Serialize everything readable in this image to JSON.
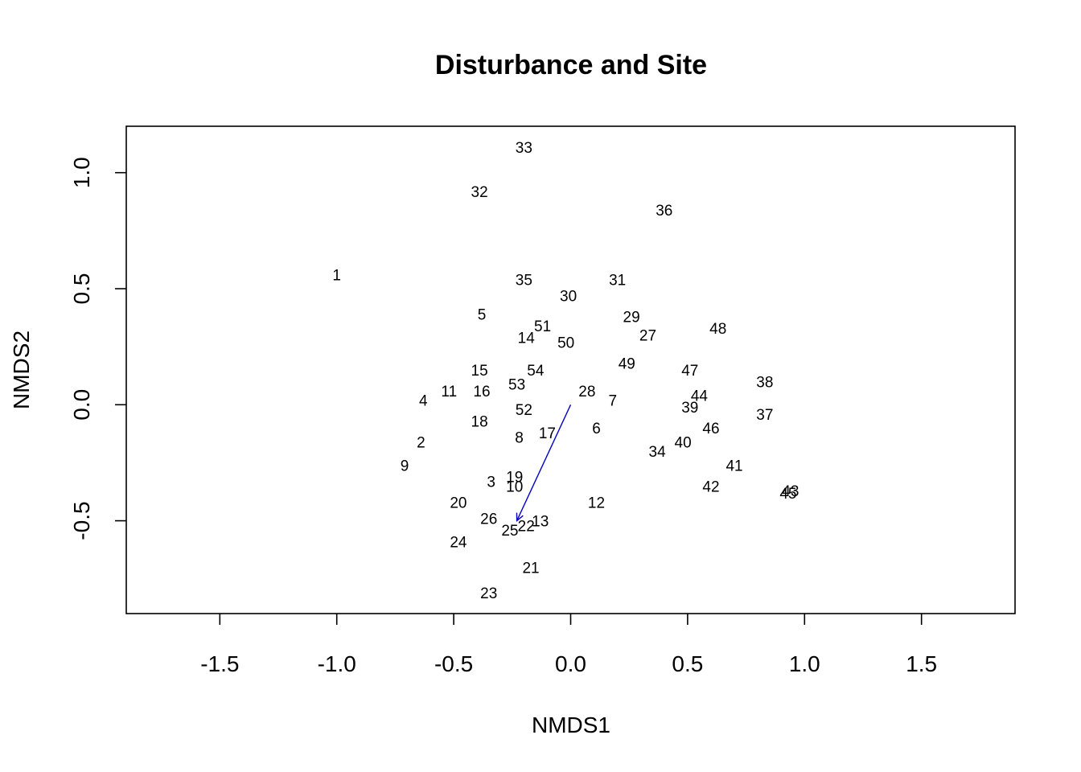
{
  "chart_data": {
    "type": "scatter",
    "title": "Disturbance and Site",
    "xlabel": "NMDS1",
    "ylabel": "NMDS2",
    "xlim": [
      -1.9,
      1.9
    ],
    "ylim": [
      -0.9,
      1.2
    ],
    "xticks": [
      "-1.5",
      "-1.0",
      "-0.5",
      "0.0",
      "0.5",
      "1.0",
      "1.5"
    ],
    "yticks": [
      "-0.5",
      "0.0",
      "0.5",
      "1.0"
    ],
    "grid": false,
    "legend": "none",
    "points": [
      {
        "label": "1",
        "x": -1.0,
        "y": 0.56
      },
      {
        "label": "2",
        "x": -0.64,
        "y": -0.16
      },
      {
        "label": "3",
        "x": -0.34,
        "y": -0.33
      },
      {
        "label": "4",
        "x": -0.63,
        "y": 0.02
      },
      {
        "label": "5",
        "x": -0.38,
        "y": 0.39
      },
      {
        "label": "6",
        "x": 0.11,
        "y": -0.1
      },
      {
        "label": "7",
        "x": 0.18,
        "y": 0.02
      },
      {
        "label": "8",
        "x": -0.22,
        "y": -0.14
      },
      {
        "label": "9",
        "x": -0.71,
        "y": -0.26
      },
      {
        "label": "10",
        "x": -0.24,
        "y": -0.35
      },
      {
        "label": "11",
        "x": -0.52,
        "y": 0.06
      },
      {
        "label": "12",
        "x": 0.11,
        "y": -0.42
      },
      {
        "label": "13",
        "x": -0.13,
        "y": -0.5
      },
      {
        "label": "14",
        "x": -0.19,
        "y": 0.29
      },
      {
        "label": "15",
        "x": -0.39,
        "y": 0.15
      },
      {
        "label": "16",
        "x": -0.38,
        "y": 0.06
      },
      {
        "label": "17",
        "x": -0.1,
        "y": -0.12
      },
      {
        "label": "18",
        "x": -0.39,
        "y": -0.07
      },
      {
        "label": "19",
        "x": -0.24,
        "y": -0.31
      },
      {
        "label": "20",
        "x": -0.48,
        "y": -0.42
      },
      {
        "label": "21",
        "x": -0.17,
        "y": -0.7
      },
      {
        "label": "22",
        "x": -0.19,
        "y": -0.52
      },
      {
        "label": "23",
        "x": -0.35,
        "y": -0.81
      },
      {
        "label": "24",
        "x": -0.48,
        "y": -0.59
      },
      {
        "label": "25",
        "x": -0.26,
        "y": -0.54
      },
      {
        "label": "26",
        "x": -0.35,
        "y": -0.49
      },
      {
        "label": "27",
        "x": 0.33,
        "y": 0.3
      },
      {
        "label": "28",
        "x": 0.07,
        "y": 0.06
      },
      {
        "label": "29",
        "x": 0.26,
        "y": 0.38
      },
      {
        "label": "30",
        "x": -0.01,
        "y": 0.47
      },
      {
        "label": "31",
        "x": 0.2,
        "y": 0.54
      },
      {
        "label": "32",
        "x": -0.39,
        "y": 0.92
      },
      {
        "label": "33",
        "x": -0.2,
        "y": 1.11
      },
      {
        "label": "34",
        "x": 0.37,
        "y": -0.2
      },
      {
        "label": "35",
        "x": -0.2,
        "y": 0.54
      },
      {
        "label": "36",
        "x": 0.4,
        "y": 0.84
      },
      {
        "label": "37",
        "x": 0.83,
        "y": -0.04
      },
      {
        "label": "38",
        "x": 0.83,
        "y": 0.1
      },
      {
        "label": "39",
        "x": 0.51,
        "y": -0.01
      },
      {
        "label": "40",
        "x": 0.48,
        "y": -0.16
      },
      {
        "label": "41",
        "x": 0.7,
        "y": -0.26
      },
      {
        "label": "42",
        "x": 0.6,
        "y": -0.35
      },
      {
        "label": "43",
        "x": 0.94,
        "y": -0.37
      },
      {
        "label": "44",
        "x": 0.55,
        "y": 0.04
      },
      {
        "label": "45",
        "x": 0.93,
        "y": -0.38
      },
      {
        "label": "46",
        "x": 0.6,
        "y": -0.1
      },
      {
        "label": "47",
        "x": 0.51,
        "y": 0.15
      },
      {
        "label": "48",
        "x": 0.63,
        "y": 0.33
      },
      {
        "label": "49",
        "x": 0.24,
        "y": 0.18
      },
      {
        "label": "50",
        "x": -0.02,
        "y": 0.27
      },
      {
        "label": "51",
        "x": -0.12,
        "y": 0.34
      },
      {
        "label": "52",
        "x": -0.2,
        "y": -0.02
      },
      {
        "label": "53",
        "x": -0.23,
        "y": 0.09
      },
      {
        "label": "54",
        "x": -0.15,
        "y": 0.15
      }
    ],
    "vectors": [
      {
        "label": "",
        "x0": 0.0,
        "y0": 0.0,
        "x1": -0.23,
        "y1": -0.5,
        "color": "#0000cc"
      }
    ]
  }
}
